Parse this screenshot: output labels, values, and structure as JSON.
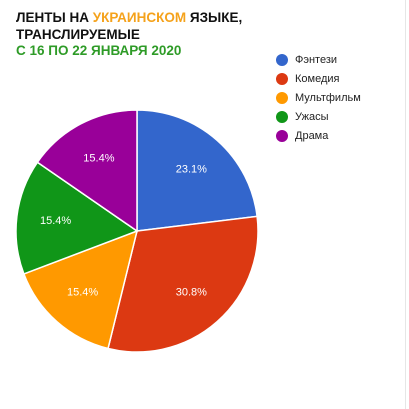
{
  "chart_data": {
    "type": "pie",
    "title": {
      "part1": "ЛЕНТЫ НА ",
      "highlight": "УКРАИНСКОМ",
      "part2": " ЯЗЫКЕ, ТРАНСЛИРУЕМЫЕ"
    },
    "subtitle": "С 16 ПО 22 ЯНВАРЯ 2020",
    "slices": [
      {
        "label": "Фэнтези",
        "value": 23.1,
        "value_label": "23.1%",
        "color": "#3366cc"
      },
      {
        "label": "Комедия",
        "value": 30.8,
        "value_label": "30.8%",
        "color": "#dc3912"
      },
      {
        "label": "Мультфильм",
        "value": 15.4,
        "value_label": "15.4%",
        "color": "#ff9900"
      },
      {
        "label": "Ужасы",
        "value": 15.4,
        "value_label": "15.4%",
        "color": "#109618"
      },
      {
        "label": "Драма",
        "value": 15.4,
        "value_label": "15.4%",
        "color": "#990099"
      }
    ],
    "legend_position": "right"
  }
}
